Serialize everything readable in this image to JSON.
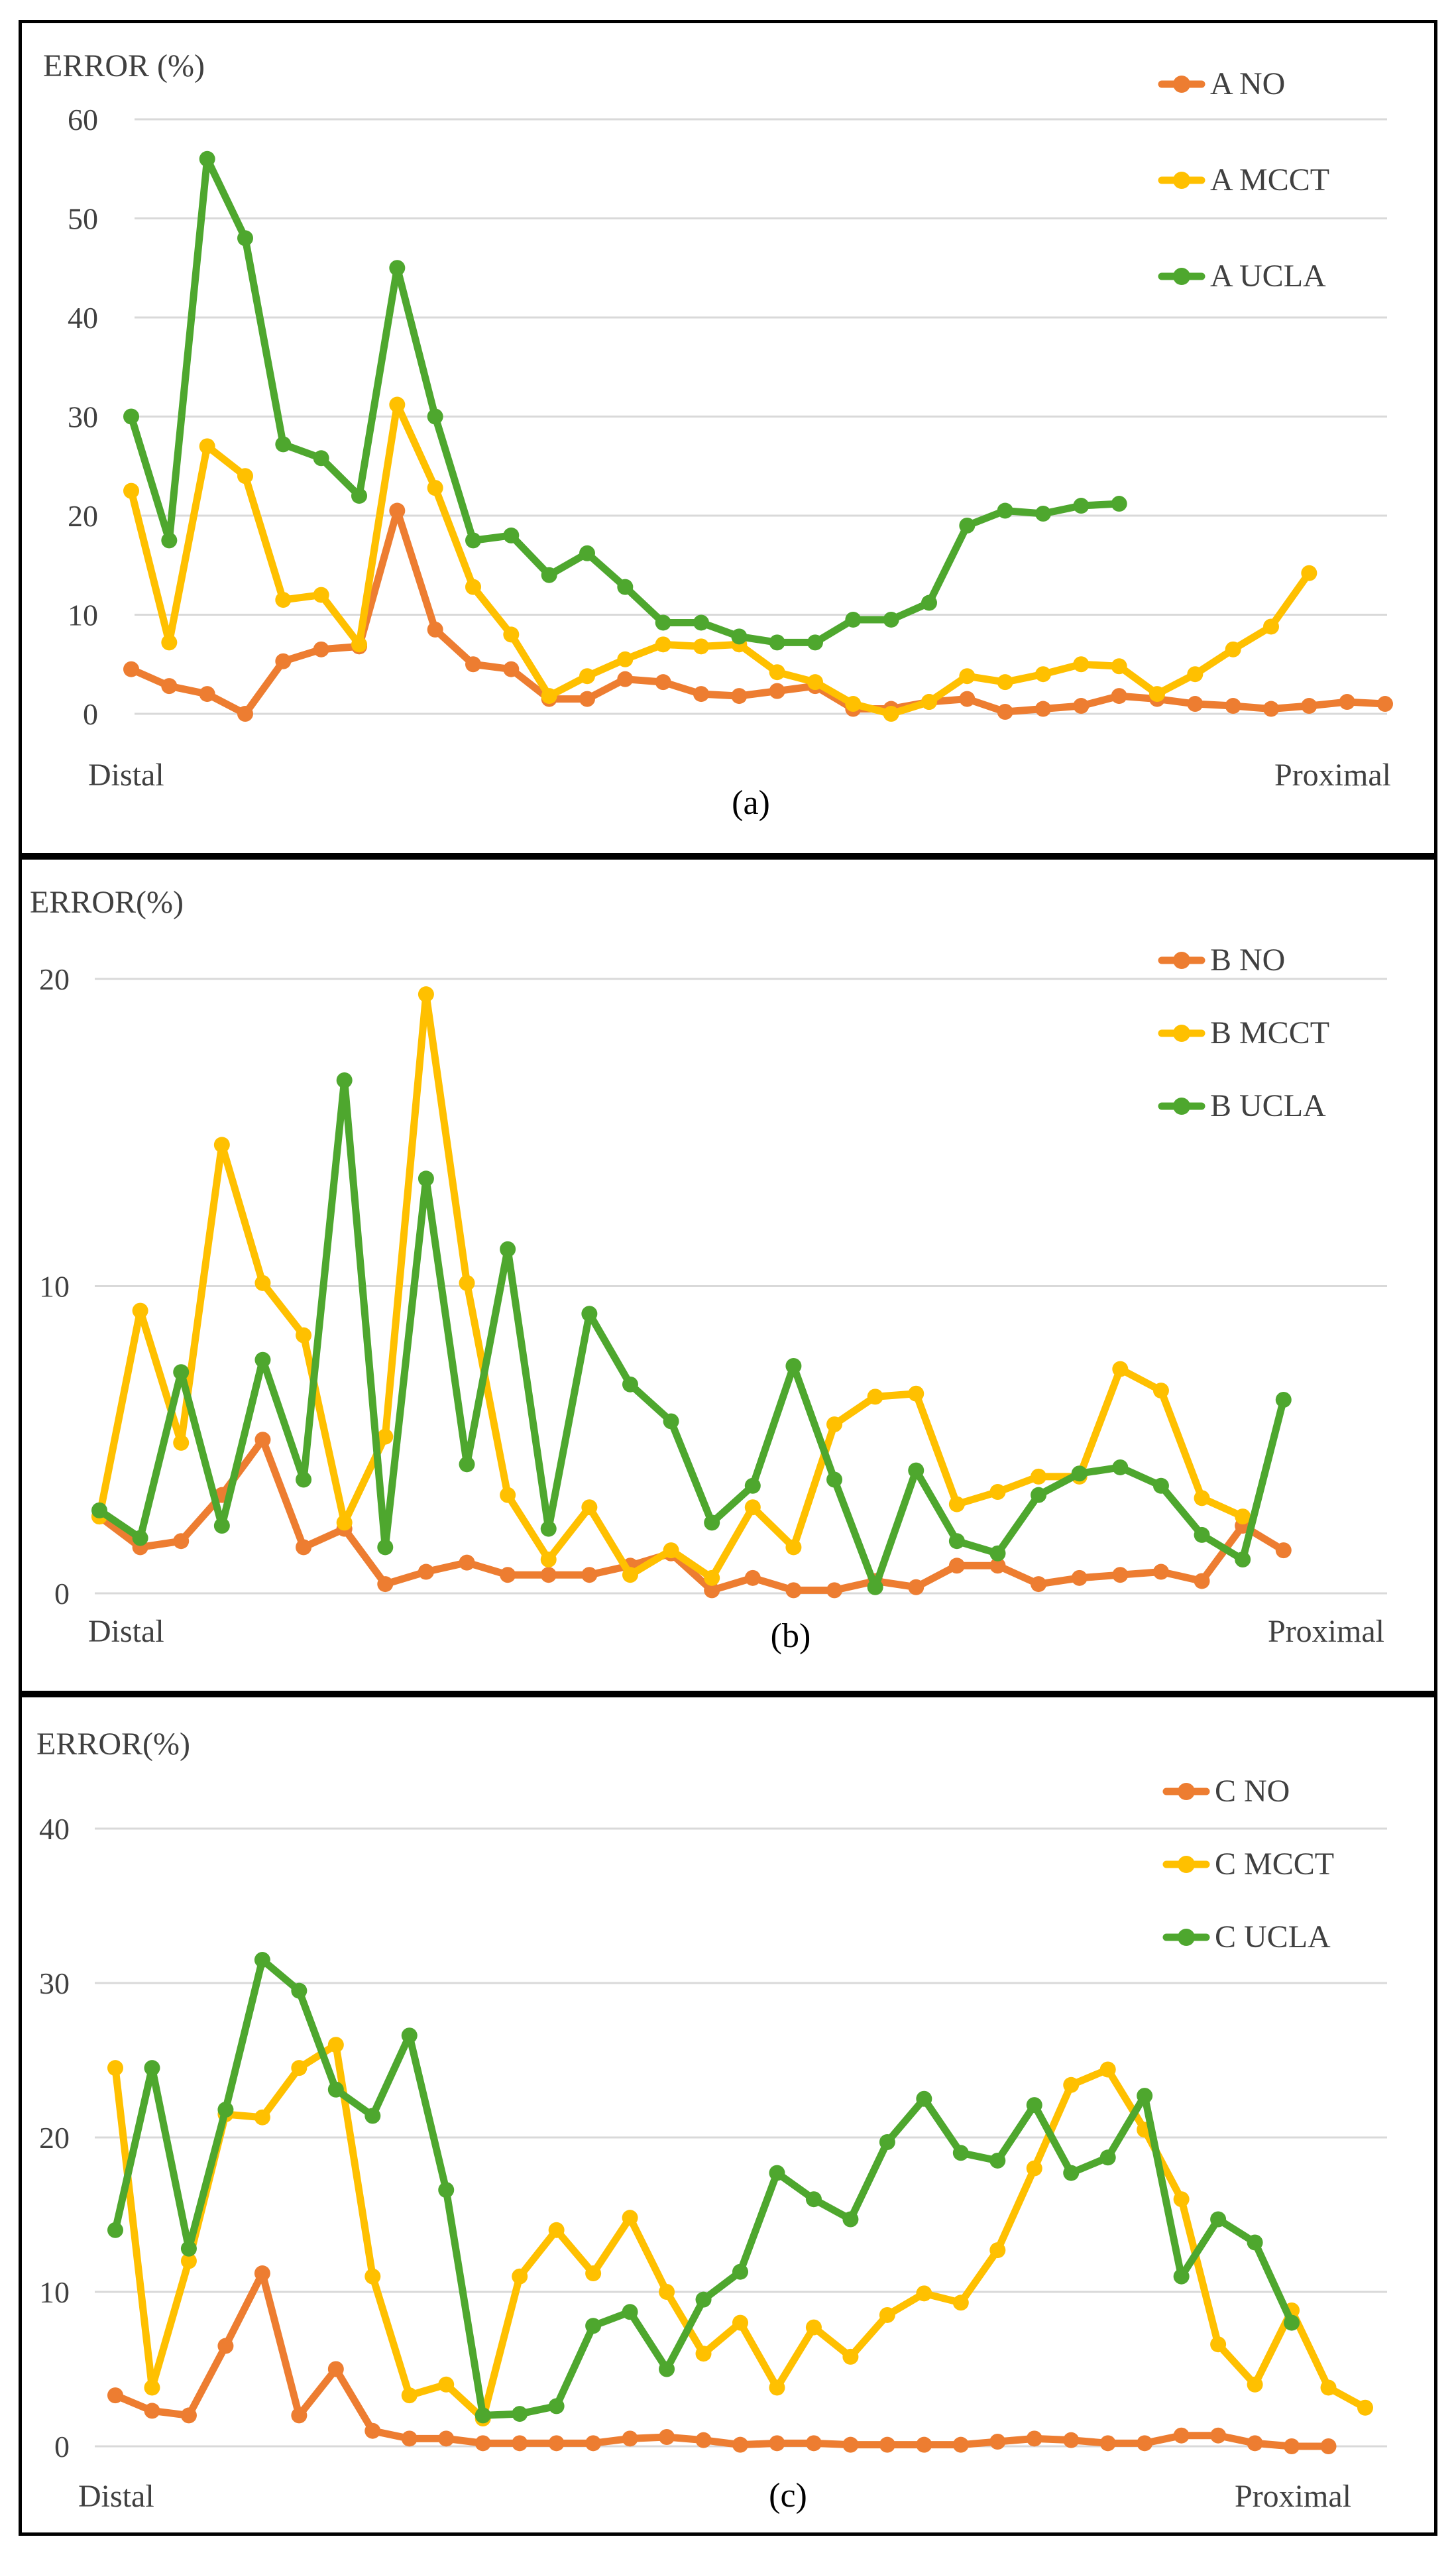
{
  "colors": {
    "no": "#ED7D31",
    "mcct": "#FFC000",
    "ucla": "#4EA72E"
  },
  "chart_data": [
    {
      "type": "line",
      "panel": "(a)",
      "ylabel": "ERROR (%)",
      "ylim": [
        0,
        60
      ],
      "yticks": [
        "0",
        "10",
        "20",
        "30",
        "40",
        "50",
        "60"
      ],
      "x_start_label": "Distal",
      "x_end_label": "Proximal",
      "n_points": 34,
      "series": [
        {
          "name": "A NO",
          "key": "no",
          "values": [
            4.5,
            2.8,
            2,
            0,
            5.3,
            6.5,
            6.8,
            20.5,
            8.5,
            5,
            4.5,
            1.5,
            1.5,
            3.5,
            3.2,
            2,
            1.8,
            2.3,
            2.8,
            0.5,
            0.5,
            1.2,
            1.5,
            0.2,
            0.5,
            0.8,
            1.8,
            1.5,
            1,
            0.8,
            0.5,
            0.8,
            1.2,
            1
          ]
        },
        {
          "name": "A MCCT",
          "key": "mcct",
          "values": [
            22.5,
            7.2,
            27,
            24,
            11.5,
            12,
            7,
            31.2,
            22.8,
            12.8,
            8,
            1.8,
            3.8,
            5.5,
            7,
            6.8,
            7,
            4.2,
            3.2,
            1,
            0,
            1.2,
            3.8,
            3.2,
            4,
            5,
            4.8,
            2,
            4,
            6.5,
            8.8,
            14.2
          ]
        },
        {
          "name": "A UCLA",
          "key": "ucla",
          "values": [
            30,
            17.5,
            56,
            48,
            27.2,
            25.8,
            22,
            45,
            30,
            17.5,
            18,
            14,
            16.2,
            12.8,
            9.2,
            9.2,
            7.8,
            7.2,
            7.2,
            9.5,
            9.5,
            11.2,
            19,
            20.5,
            20.2,
            21,
            21.2
          ]
        }
      ]
    },
    {
      "type": "line",
      "panel": "(b)",
      "ylabel": "ERROR(%)",
      "ylim": [
        0,
        20
      ],
      "yticks": [
        "0",
        "10",
        "20"
      ],
      "x_start_label": "Distal",
      "x_end_label": "Proximal",
      "n_points": 32,
      "series": [
        {
          "name": "B NO",
          "key": "no",
          "values": [
            2.5,
            1.5,
            1.7,
            3.2,
            5,
            1.5,
            2.1,
            0.3,
            0.7,
            1,
            0.6,
            0.6,
            0.6,
            0.9,
            1.3,
            0.1,
            0.5,
            0.1,
            0.1,
            0.4,
            0.2,
            0.9,
            0.9,
            0.3,
            0.5,
            0.6,
            0.7,
            0.4,
            2.2,
            1.4
          ]
        },
        {
          "name": "B MCCT",
          "key": "mcct",
          "values": [
            2.5,
            9.2,
            4.9,
            14.6,
            10.1,
            8.4,
            2.3,
            5.1,
            19.5,
            10.1,
            3.2,
            1.1,
            2.8,
            0.6,
            1.4,
            0.5,
            2.8,
            1.5,
            5.5,
            6.4,
            6.5,
            2.9,
            3.3,
            3.8,
            3.8,
            7.3,
            6.6,
            3.1,
            2.5
          ]
        },
        {
          "name": "B UCLA",
          "key": "ucla",
          "values": [
            2.7,
            1.8,
            7.2,
            2.2,
            7.6,
            3.7,
            16.7,
            1.5,
            13.5,
            4.2,
            11.2,
            2.1,
            9.1,
            6.8,
            5.6,
            2.3,
            3.5,
            7.4,
            3.7,
            0.2,
            4,
            1.7,
            1.3,
            3.2,
            3.9,
            4.1,
            3.5,
            1.9,
            1.1,
            6.3
          ]
        }
      ]
    },
    {
      "type": "line",
      "panel": "(c)",
      "ylabel": "ERROR(%)",
      "ylim": [
        0,
        40
      ],
      "yticks": [
        "0",
        "10",
        "20",
        "30",
        "40"
      ],
      "x_start_label": "Distal",
      "x_end_label": "Proximal",
      "n_points": 35,
      "series": [
        {
          "name": "C NO",
          "key": "no",
          "values": [
            3.3,
            2.3,
            2,
            6.5,
            11.2,
            2,
            5,
            1,
            0.5,
            0.5,
            0.2,
            0.2,
            0.2,
            0.2,
            0.5,
            0.6,
            0.4,
            0.1,
            0.2,
            0.2,
            0.1,
            0.1,
            0.1,
            0.1,
            0.3,
            0.5,
            0.4,
            0.2,
            0.2,
            0.7,
            0.7,
            0.2,
            0,
            0
          ]
        },
        {
          "name": "C MCCT",
          "key": "mcct",
          "values": [
            24.5,
            3.8,
            12,
            21.5,
            21.3,
            24.5,
            26,
            11,
            3.3,
            4,
            1.8,
            11,
            14,
            11.2,
            14.8,
            10,
            6,
            8,
            3.8,
            7.7,
            5.8,
            8.5,
            9.9,
            9.3,
            12.7,
            18,
            23.4,
            24.4,
            20.5,
            16,
            6.6,
            4,
            8.8,
            3.8,
            2.5
          ]
        },
        {
          "name": "C UCLA",
          "key": "ucla",
          "values": [
            14,
            24.5,
            12.8,
            21.8,
            31.5,
            29.5,
            23.1,
            21.4,
            26.6,
            16.6,
            2,
            2.1,
            2.6,
            7.8,
            8.7,
            5,
            9.5,
            11.3,
            17.7,
            16,
            14.7,
            19.7,
            22.5,
            19,
            18.5,
            22.1,
            17.7,
            18.7,
            22.7,
            11,
            14.7,
            13.2,
            8
          ]
        }
      ]
    }
  ]
}
